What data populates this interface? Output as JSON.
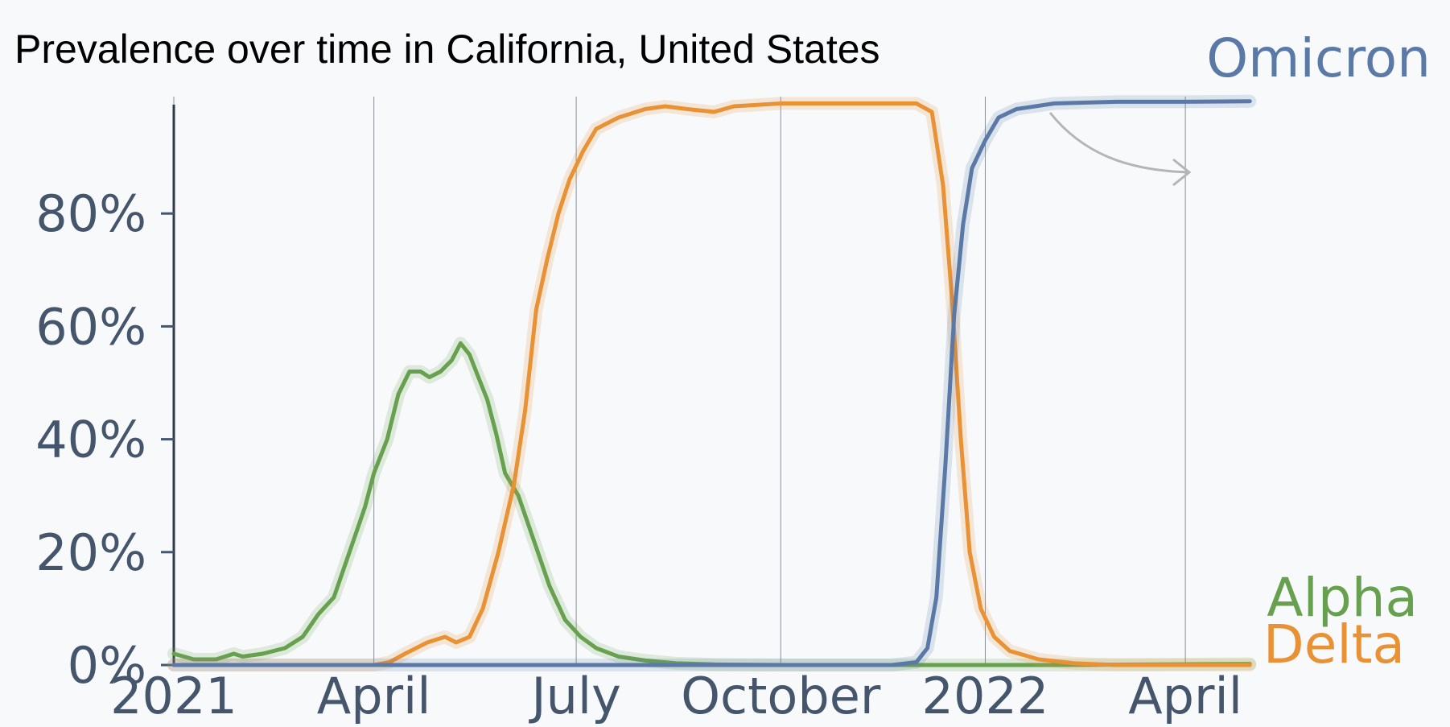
{
  "chart_data": {
    "type": "line",
    "title": "Prevalence over time in California, United States",
    "xlabel": "",
    "ylabel": "",
    "x_range": [
      "2021-01-01",
      "2022-05-01"
    ],
    "ylim": [
      0,
      1
    ],
    "y_ticks": [
      {
        "value": 0.0,
        "label": "0%"
      },
      {
        "value": 0.2,
        "label": "20%"
      },
      {
        "value": 0.4,
        "label": "40%"
      },
      {
        "value": 0.6,
        "label": "60%"
      },
      {
        "value": 0.8,
        "label": "80%"
      }
    ],
    "x_ticks": [
      {
        "date": "2021-01-01",
        "label": "2021"
      },
      {
        "date": "2021-04-01",
        "label": "April"
      },
      {
        "date": "2021-07-01",
        "label": "July"
      },
      {
        "date": "2021-10-01",
        "label": "October"
      },
      {
        "date": "2022-01-01",
        "label": "2022"
      },
      {
        "date": "2022-04-01",
        "label": "April"
      }
    ],
    "grid": "vertical",
    "series": [
      {
        "name": "Alpha",
        "color": "#67a14f",
        "points": [
          [
            "2021-01-01",
            0.02
          ],
          [
            "2021-01-10",
            0.01
          ],
          [
            "2021-01-20",
            0.01
          ],
          [
            "2021-01-28",
            0.02
          ],
          [
            "2021-02-01",
            0.015
          ],
          [
            "2021-02-10",
            0.02
          ],
          [
            "2021-02-20",
            0.03
          ],
          [
            "2021-02-28",
            0.05
          ],
          [
            "2021-03-07",
            0.09
          ],
          [
            "2021-03-14",
            0.12
          ],
          [
            "2021-03-21",
            0.2
          ],
          [
            "2021-03-28",
            0.28
          ],
          [
            "2021-04-01",
            0.34
          ],
          [
            "2021-04-07",
            0.4
          ],
          [
            "2021-04-12",
            0.48
          ],
          [
            "2021-04-17",
            0.52
          ],
          [
            "2021-04-22",
            0.52
          ],
          [
            "2021-04-26",
            0.51
          ],
          [
            "2021-05-01",
            0.52
          ],
          [
            "2021-05-06",
            0.54
          ],
          [
            "2021-05-10",
            0.57
          ],
          [
            "2021-05-14",
            0.55
          ],
          [
            "2021-05-18",
            0.51
          ],
          [
            "2021-05-22",
            0.47
          ],
          [
            "2021-05-26",
            0.41
          ],
          [
            "2021-05-30",
            0.34
          ],
          [
            "2021-06-05",
            0.3
          ],
          [
            "2021-06-12",
            0.22
          ],
          [
            "2021-06-19",
            0.14
          ],
          [
            "2021-06-26",
            0.08
          ],
          [
            "2021-07-03",
            0.05
          ],
          [
            "2021-07-10",
            0.03
          ],
          [
            "2021-07-20",
            0.015
          ],
          [
            "2021-08-01",
            0.008
          ],
          [
            "2021-08-15",
            0.003
          ],
          [
            "2021-09-01",
            0.001
          ],
          [
            "2021-10-01",
            0.0
          ],
          [
            "2021-12-01",
            0.0
          ],
          [
            "2022-02-01",
            0.0
          ],
          [
            "2022-04-30",
            0.002
          ]
        ]
      },
      {
        "name": "Delta",
        "color": "#e99235",
        "points": [
          [
            "2021-01-01",
            0.0
          ],
          [
            "2021-03-01",
            0.0
          ],
          [
            "2021-04-01",
            0.0
          ],
          [
            "2021-04-08",
            0.005
          ],
          [
            "2021-04-15",
            0.02
          ],
          [
            "2021-04-25",
            0.04
          ],
          [
            "2021-05-03",
            0.05
          ],
          [
            "2021-05-08",
            0.04
          ],
          [
            "2021-05-14",
            0.05
          ],
          [
            "2021-05-20",
            0.1
          ],
          [
            "2021-05-27",
            0.2
          ],
          [
            "2021-06-03",
            0.32
          ],
          [
            "2021-06-08",
            0.45
          ],
          [
            "2021-06-13",
            0.63
          ],
          [
            "2021-06-18",
            0.72
          ],
          [
            "2021-06-23",
            0.8
          ],
          [
            "2021-06-28",
            0.86
          ],
          [
            "2021-07-04",
            0.91
          ],
          [
            "2021-07-10",
            0.95
          ],
          [
            "2021-07-20",
            0.97
          ],
          [
            "2021-08-01",
            0.985
          ],
          [
            "2021-08-10",
            0.99
          ],
          [
            "2021-08-20",
            0.985
          ],
          [
            "2021-09-01",
            0.98
          ],
          [
            "2021-09-10",
            0.99
          ],
          [
            "2021-10-01",
            0.995
          ],
          [
            "2021-11-01",
            0.995
          ],
          [
            "2021-12-01",
            0.995
          ],
          [
            "2021-12-08",
            0.98
          ],
          [
            "2021-12-13",
            0.85
          ],
          [
            "2021-12-17",
            0.65
          ],
          [
            "2021-12-21",
            0.4
          ],
          [
            "2021-12-25",
            0.2
          ],
          [
            "2021-12-30",
            0.1
          ],
          [
            "2022-01-05",
            0.05
          ],
          [
            "2022-01-12",
            0.025
          ],
          [
            "2022-01-25",
            0.01
          ],
          [
            "2022-02-10",
            0.003
          ],
          [
            "2022-03-01",
            0.0
          ],
          [
            "2022-04-30",
            0.0
          ]
        ]
      },
      {
        "name": "Omicron",
        "color": "#5b79a7",
        "points": [
          [
            "2021-01-01",
            0.0
          ],
          [
            "2021-11-20",
            0.0
          ],
          [
            "2021-12-01",
            0.005
          ],
          [
            "2021-12-06",
            0.03
          ],
          [
            "2021-12-10",
            0.12
          ],
          [
            "2021-12-14",
            0.35
          ],
          [
            "2021-12-18",
            0.62
          ],
          [
            "2021-12-22",
            0.78
          ],
          [
            "2021-12-26",
            0.88
          ],
          [
            "2022-01-01",
            0.93
          ],
          [
            "2022-01-07",
            0.97
          ],
          [
            "2022-01-15",
            0.985
          ],
          [
            "2022-02-01",
            0.995
          ],
          [
            "2022-03-01",
            0.998
          ],
          [
            "2022-04-01",
            0.998
          ],
          [
            "2022-04-30",
            0.999
          ]
        ]
      }
    ]
  }
}
